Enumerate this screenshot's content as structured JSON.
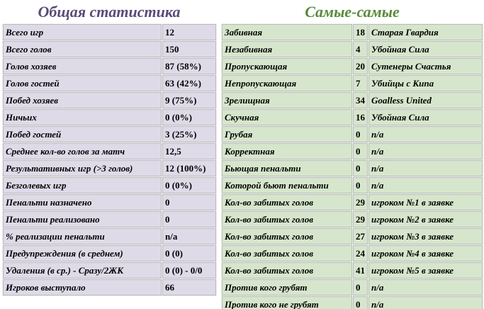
{
  "left": {
    "title": "Общая статистика",
    "rows": [
      [
        "Всего игр",
        "12"
      ],
      [
        "Всего голов",
        "150"
      ],
      [
        "Голов хозяев",
        "87 (58%)"
      ],
      [
        "Голов гостей",
        "63 (42%)"
      ],
      [
        "Побед хозяев",
        "9 (75%)"
      ],
      [
        "Ничьих",
        "0 (0%)"
      ],
      [
        "Побед гостей",
        "3 (25%)"
      ],
      [
        "Среднее кол-во голов за матч",
        "12,5"
      ],
      [
        "Результативных игр (>3 голов)",
        "12 (100%)"
      ],
      [
        "Безголевых игр",
        "0 (0%)"
      ],
      [
        "Пенальти назначено",
        "0"
      ],
      [
        "Пенальти реализовано",
        "0"
      ],
      [
        "% реализации пенальти",
        "n/a"
      ],
      [
        "Предупреждения (в среднем)",
        "0 (0)"
      ],
      [
        "Удаления (в ср.) - Сразу/2ЖК",
        "0 (0) - 0/0"
      ],
      [
        "Игроков выступало",
        "66"
      ]
    ]
  },
  "right": {
    "title": "Самые-самые",
    "rows": [
      [
        "Забивная",
        "18",
        "Старая Гвардия"
      ],
      [
        "Незабивная",
        "4",
        "Убойная Сила"
      ],
      [
        "Пропускающая",
        "20",
        "Сутенеры Счастья"
      ],
      [
        "Непропускающая",
        "7",
        "Убийцы с Кипа"
      ],
      [
        "Зрелищная",
        "34",
        "Goalless United"
      ],
      [
        "Скучная",
        "16",
        "Убойная Сила"
      ],
      [
        "Грубая",
        "0",
        "n/a"
      ],
      [
        "Корректная",
        "0",
        "n/a"
      ],
      [
        "Бьющая пенальти",
        "0",
        "n/a"
      ],
      [
        "Которой бьют пенальти",
        "0",
        "n/a"
      ],
      [
        "Кол-во забитых голов",
        "29",
        "игроком №1 в заявке"
      ],
      [
        "Кол-во забитых голов",
        "29",
        "игроком №2 в заявке"
      ],
      [
        "Кол-во забитых голов",
        "27",
        "игроком №3 в заявке"
      ],
      [
        "Кол-во забитых голов",
        "24",
        "игроком №4 в заявке"
      ],
      [
        "Кол-во забитых голов",
        "41",
        "игроком №5 в заявке"
      ],
      [
        "Против кого грубят",
        "0",
        "n/a"
      ],
      [
        "Против кого не грубят",
        "0",
        "n/a"
      ]
    ]
  }
}
